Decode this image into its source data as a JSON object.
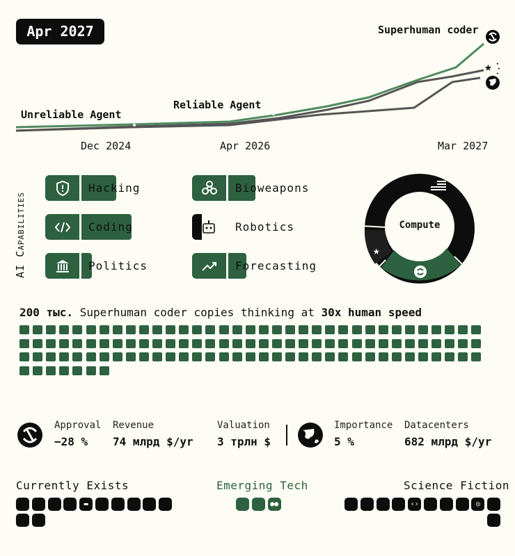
{
  "date": "Apr 2027",
  "timeline": {
    "labels": {
      "unreliable": "Unreliable Agent",
      "reliable": "Reliable Agent",
      "superhuman": "Superhuman coder"
    },
    "ticks": [
      "Dec 2024",
      "Apr 2026",
      "Mar 2027"
    ]
  },
  "capabilities": {
    "title": "AI Capabilities",
    "items": [
      {
        "label": "Hacking",
        "icon": "shield-icon",
        "level": 0.65
      },
      {
        "label": "Bioweapons",
        "icon": "biohazard-icon",
        "level": 0.55
      },
      {
        "label": "Coding",
        "icon": "code-icon",
        "level": 0.95
      },
      {
        "label": "Robotics",
        "icon": "robot-icon",
        "level": 0.1
      },
      {
        "label": "Politics",
        "icon": "government-icon",
        "level": 0.2
      },
      {
        "label": "Forecasting",
        "icon": "trend-icon",
        "level": 0.35
      }
    ]
  },
  "compute": {
    "label": "Compute",
    "segments": [
      {
        "name": "us",
        "share": 0.72,
        "color": "#0d0d0d"
      },
      {
        "name": "china",
        "share": 0.12,
        "color": "#2d6140"
      },
      {
        "name": "openbrain",
        "share": 0.14,
        "color": "#1a1a1a"
      }
    ]
  },
  "copies": {
    "count": "200 тыс.",
    "text": " Superhuman coder copies thinking at ",
    "speed": "30x human speed",
    "filled": 112
  },
  "stats": {
    "approval_label": "Approval",
    "approval": "−28 %",
    "revenue_label": "Revenue",
    "revenue": "74 млрд $/yr",
    "valuation_label": "Valuation",
    "valuation": "3 трлн $",
    "importance_label": "Importance",
    "importance": "5 %",
    "datacenters_label": "Datacenters",
    "datacenters": "682 млрд $/yr"
  },
  "categories": {
    "current": "Currently Exists",
    "emerging": "Emerging Tech",
    "scifi": "Science Fiction"
  },
  "colors": {
    "green": "#2d6140",
    "black": "#0d0d0d",
    "bg": "#fdfdf5"
  }
}
